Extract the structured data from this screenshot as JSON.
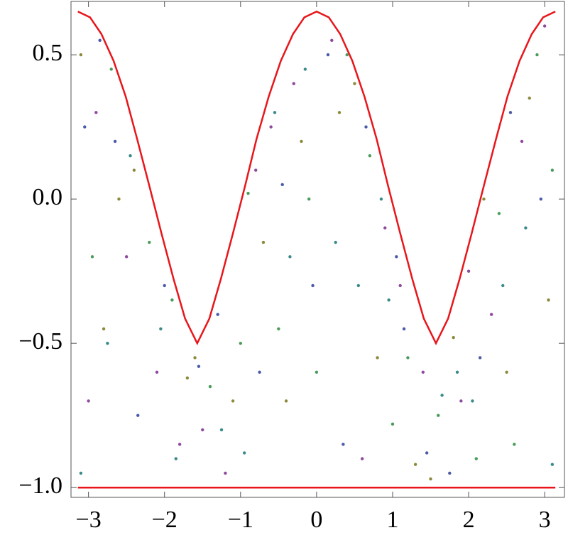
{
  "chart_data": {
    "type": "scatter",
    "xlim": [
      -3.23,
      3.26
    ],
    "ylim": [
      -1.034,
      0.685
    ],
    "xticks": [
      {
        "value": -3,
        "label": "−3"
      },
      {
        "value": -2,
        "label": "−2"
      },
      {
        "value": -1,
        "label": "−1"
      },
      0,
      1,
      2,
      3
    ],
    "yticks": [
      {
        "value": -1,
        "label": "−1.0"
      },
      {
        "value": -0.5,
        "label": "−0.5"
      },
      {
        "value": 0,
        "label": "0.0"
      },
      0.5
    ],
    "series": [
      {
        "color": "#8e4a9c",
        "x": [
          -2.9,
          -2.1,
          -1.5,
          -0.8,
          0.2,
          1.1,
          1.9,
          2.7,
          -2.5,
          0.6,
          -0.3,
          2.3,
          -1.2,
          1.4,
          3.0,
          -3.0,
          0.9,
          -1.8,
          2.0,
          -0.6
        ],
        "y": [
          0.3,
          -0.6,
          -0.8,
          0.1,
          0.55,
          -0.3,
          -0.7,
          0.2,
          -0.2,
          -0.9,
          0.4,
          -0.4,
          -0.95,
          -0.6,
          0.6,
          -0.7,
          -0.1,
          -0.85,
          -0.25,
          0.25
        ]
      },
      {
        "color": "#4a9c5a",
        "x": [
          -2.7,
          -1.9,
          -1.0,
          -0.1,
          0.7,
          1.6,
          2.4,
          3.1,
          -2.2,
          0.4,
          -0.5,
          1.2,
          2.9,
          -2.95,
          0.0,
          -1.4,
          2.1,
          1.0,
          -0.9,
          2.6
        ],
        "y": [
          0.45,
          -0.35,
          -0.5,
          0.0,
          0.15,
          -0.75,
          -0.05,
          0.1,
          -0.15,
          0.5,
          -0.45,
          -0.55,
          0.5,
          -0.2,
          -0.6,
          -0.65,
          -0.9,
          -0.78,
          0.02,
          -0.85
        ]
      },
      {
        "color": "#8a8a3a",
        "x": [
          -2.6,
          -1.7,
          -0.7,
          0.3,
          1.3,
          2.2,
          2.8,
          -3.1,
          -0.2,
          0.8,
          -2.4,
          1.8,
          -1.1,
          2.5,
          -0.4,
          0.5,
          -2.8,
          1.5,
          -1.6,
          3.05
        ],
        "y": [
          0.0,
          -0.62,
          -0.15,
          0.3,
          -0.92,
          0.0,
          0.35,
          0.5,
          0.2,
          -0.55,
          0.1,
          -0.48,
          -0.7,
          -0.6,
          -0.7,
          0.4,
          -0.45,
          -0.97,
          -0.55,
          -0.35
        ]
      },
      {
        "color": "#4a5aa8",
        "x": [
          -2.85,
          -2.0,
          -1.3,
          -0.45,
          0.15,
          1.05,
          1.75,
          2.55,
          -2.35,
          0.65,
          -0.05,
          1.45,
          2.95,
          -1.55,
          0.35,
          -2.65,
          2.15,
          -0.75,
          1.15,
          -3.05
        ],
        "y": [
          0.55,
          -0.3,
          -0.4,
          0.05,
          0.5,
          -0.2,
          -0.95,
          0.3,
          -0.75,
          0.25,
          -0.3,
          -0.88,
          0.0,
          -0.58,
          -0.85,
          0.2,
          -0.55,
          -0.6,
          -0.45,
          0.25
        ]
      },
      {
        "color": "#3a8a8a",
        "x": [
          -2.75,
          -2.05,
          -1.25,
          -0.55,
          0.25,
          0.95,
          1.65,
          2.45,
          3.1,
          -3.1,
          -0.95,
          0.55,
          1.85,
          -1.85,
          2.75,
          -0.15,
          0.85,
          -2.45,
          2.05,
          -0.35
        ],
        "y": [
          -0.5,
          -0.45,
          -0.8,
          0.3,
          -0.15,
          -0.35,
          -0.68,
          -0.3,
          -0.92,
          -0.95,
          -0.88,
          -0.3,
          -0.6,
          -0.9,
          -0.1,
          0.45,
          0.0,
          0.15,
          -0.7,
          -0.2
        ]
      }
    ],
    "lines": [
      {
        "color": "#e8161b",
        "x": [
          -3.14,
          -2.98,
          -2.83,
          -2.67,
          -2.51,
          -2.36,
          -2.2,
          -2.04,
          -1.88,
          -1.73,
          -1.57,
          -1.41,
          -1.26,
          -1.1,
          -0.94,
          -0.79,
          -0.63,
          -0.47,
          -0.31,
          -0.16,
          0,
          0.16,
          0.31,
          0.47,
          0.63,
          0.79,
          0.94,
          1.1,
          1.26,
          1.41,
          1.57,
          1.73,
          1.88,
          2.04,
          2.2,
          2.36,
          2.51,
          2.67,
          2.83,
          2.98,
          3.14
        ],
        "y": [
          0.65,
          0.63,
          0.572,
          0.479,
          0.355,
          0.208,
          0.046,
          -0.119,
          -0.278,
          -0.414,
          -0.5,
          -0.414,
          -0.278,
          -0.119,
          0.046,
          0.208,
          0.355,
          0.479,
          0.572,
          0.63,
          0.65,
          0.63,
          0.572,
          0.479,
          0.355,
          0.208,
          0.046,
          -0.119,
          -0.278,
          -0.414,
          -0.5,
          -0.414,
          -0.278,
          -0.119,
          0.046,
          0.208,
          0.355,
          0.479,
          0.572,
          0.63,
          0.65
        ]
      },
      {
        "color": "#e8161b",
        "x": [
          -3.14,
          3.14
        ],
        "y": [
          -1,
          -1
        ]
      }
    ]
  }
}
